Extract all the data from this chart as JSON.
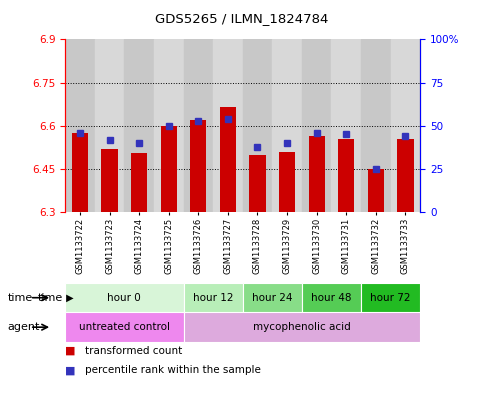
{
  "title": "GDS5265 / ILMN_1824784",
  "samples": [
    "GSM1133722",
    "GSM1133723",
    "GSM1133724",
    "GSM1133725",
    "GSM1133726",
    "GSM1133727",
    "GSM1133728",
    "GSM1133729",
    "GSM1133730",
    "GSM1133731",
    "GSM1133732",
    "GSM1133733"
  ],
  "transformed_counts": [
    6.575,
    6.52,
    6.505,
    6.6,
    6.62,
    6.665,
    6.5,
    6.51,
    6.565,
    6.555,
    6.45,
    6.555
  ],
  "percentile_ranks": [
    46,
    42,
    40,
    50,
    53,
    54,
    38,
    40,
    46,
    45,
    25,
    44
  ],
  "y_min": 6.3,
  "y_max": 6.9,
  "y_ticks_left": [
    6.3,
    6.45,
    6.6,
    6.75,
    6.9
  ],
  "y_ticks_right": [
    0,
    25,
    50,
    75,
    100
  ],
  "bar_color": "#cc0000",
  "blue_color": "#3333bb",
  "col_colors": [
    "#c8c8c8",
    "#d8d8d8"
  ],
  "time_groups": [
    {
      "label": "hour 0",
      "start": 0,
      "end": 4,
      "color": "#d8f5d8"
    },
    {
      "label": "hour 12",
      "start": 4,
      "end": 6,
      "color": "#b8eeb8"
    },
    {
      "label": "hour 24",
      "start": 6,
      "end": 8,
      "color": "#88dd88"
    },
    {
      "label": "hour 48",
      "start": 8,
      "end": 10,
      "color": "#55cc55"
    },
    {
      "label": "hour 72",
      "start": 10,
      "end": 12,
      "color": "#22bb22"
    }
  ],
  "agent_groups": [
    {
      "label": "untreated control",
      "start": 0,
      "end": 4,
      "color": "#ee88ee"
    },
    {
      "label": "mycophenolic acid",
      "start": 4,
      "end": 12,
      "color": "#ddaadd"
    }
  ],
  "legend": [
    {
      "label": "transformed count",
      "color": "#cc0000"
    },
    {
      "label": "percentile rank within the sample",
      "color": "#3333bb"
    }
  ]
}
